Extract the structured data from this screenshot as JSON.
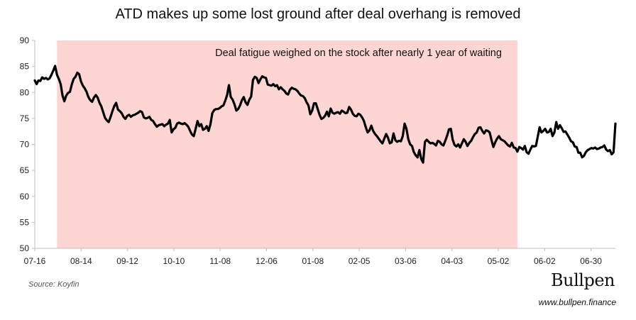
{
  "source": "Source: Koyfin",
  "brand": {
    "logo": "Bullpen",
    "url": "www.bullpen.finance"
  },
  "colors": {
    "shade": "#fdd5d3",
    "line": "#000000",
    "axis": "#bfbfbf"
  },
  "chart_data": {
    "type": "line",
    "title": "ATD makes up some lost ground after deal overhang is removed",
    "xlabel": "",
    "ylabel": "",
    "ylim": [
      50,
      90
    ],
    "yticks": [
      50,
      55,
      60,
      65,
      70,
      75,
      80,
      85,
      90
    ],
    "grid": false,
    "x_tick_labels": [
      "07-16",
      "08-14",
      "09-12",
      "10-10",
      "11-08",
      "12-06",
      "01-08",
      "02-05",
      "03-06",
      "04-03",
      "05-02",
      "06-02",
      "06-30"
    ],
    "shaded_region": {
      "x_start": 12,
      "x_end": 261,
      "color": "#fdd5d3",
      "annotation": "Deal fatigue weighed on the stock after nearly 1 year of waiting"
    },
    "series": [
      {
        "values": [
          82.3,
          81.6,
          82.3,
          82.2,
          82.9,
          82.6,
          82.8,
          82.5,
          82.7,
          83.4,
          84.2,
          85.1,
          83.4,
          82.6,
          81.6,
          79.4,
          78.3,
          79.4,
          79.9,
          80.1,
          81.5,
          82.6,
          83.0,
          83.8,
          83.5,
          82.1,
          81.3,
          80.8,
          80.1,
          79.1,
          78.5,
          78.2,
          79.0,
          79.5,
          79.0,
          78.0,
          77.3,
          76.2,
          75.1,
          74.6,
          74.3,
          75.3,
          76.4,
          77.4,
          78.0,
          76.7,
          76.4,
          76.0,
          75.3,
          74.9,
          75.5,
          75.7,
          75.3,
          75.6,
          75.7,
          75.9,
          76.1,
          76.4,
          76.2,
          75.2,
          75.0,
          75.1,
          75.3,
          74.7,
          74.5,
          73.9,
          73.4,
          73.7,
          73.8,
          73.9,
          73.5,
          73.8,
          74.0,
          74.7,
          72.3,
          72.9,
          73.2,
          74.0,
          74.2,
          74.0,
          73.9,
          74.1,
          73.8,
          73.4,
          72.6,
          71.9,
          71.6,
          73.0,
          74.5,
          73.5,
          73.9,
          72.8,
          73.0,
          73.5,
          72.6,
          73.9,
          76.0,
          76.6,
          76.8,
          76.8,
          77.0,
          77.3,
          77.5,
          78.4,
          79.5,
          81.4,
          79.1,
          78.6,
          77.7,
          76.5,
          76.8,
          77.5,
          78.5,
          79.1,
          78.1,
          77.6,
          78.6,
          79.2,
          82.4,
          83.0,
          82.8,
          81.8,
          82.5,
          83.1,
          82.9,
          82.8,
          81.5,
          81.4,
          81.3,
          81.6,
          81.2,
          81.4,
          80.6,
          81.0,
          80.6,
          80.3,
          79.8,
          79.6,
          80.5,
          80.9,
          80.7,
          80.6,
          80.3,
          79.8,
          79.4,
          79.3,
          78.9,
          78.1,
          77.5,
          75.8,
          76.5,
          77.9,
          77.9,
          76.8,
          75.7,
          74.9,
          75.1,
          75.5,
          76.3,
          75.4,
          76.9,
          76.1,
          75.9,
          76.1,
          76.2,
          75.9,
          76.5,
          76.3,
          76.0,
          76.1,
          77.2,
          76.7,
          75.9,
          75.5,
          75.4,
          75.9,
          75.7,
          75.2,
          74.5,
          73.3,
          72.3,
          72.7,
          73.6,
          72.6,
          72.0,
          71.6,
          71.1,
          70.6,
          70.2,
          71.1,
          72.0,
          71.3,
          70.2,
          70.4,
          72.1,
          70.8,
          70.5,
          70.7,
          70.6,
          71.6,
          74.0,
          73.0,
          71.0,
          70.0,
          69.7,
          68.5,
          67.9,
          67.5,
          68.9,
          67.2,
          66.5,
          70.5,
          70.9,
          70.5,
          70.2,
          70.3,
          70.1,
          69.8,
          70.7,
          70.5,
          70.0,
          69.8,
          70.7,
          71.7,
          72.9,
          73.0,
          70.9,
          69.9,
          69.6,
          70.0,
          69.4,
          70.2,
          71.0,
          70.5,
          69.7,
          70.3,
          70.7,
          71.4,
          72.0,
          72.3,
          73.2,
          73.3,
          72.6,
          72.1,
          72.7,
          72.6,
          72.3,
          70.8,
          69.5,
          70.4,
          71.1,
          71.6,
          71.0,
          70.8,
          70.6,
          70.2,
          69.8,
          69.6,
          70.3,
          69.4,
          69.3,
          68.6,
          69.5,
          69.3,
          69.0,
          69.7,
          68.5,
          68.2,
          69.0,
          69.7,
          69.6,
          69.7,
          71.5,
          73.3,
          72.3,
          72.6,
          73.0,
          72.3,
          72.4,
          73.0,
          71.6,
          72.3,
          74.3,
          73.0,
          73.7,
          73.1,
          72.4,
          72.5,
          71.9,
          71.3,
          70.6,
          70.4,
          69.6,
          69.5,
          68.4,
          68.4,
          67.5,
          67.8,
          68.5,
          68.9,
          69.1,
          69.3,
          69.2,
          69.4,
          69.1,
          69.2,
          69.4,
          69.5,
          69.8,
          69.0,
          68.7,
          68.9,
          68.1,
          68.5,
          74.0
        ]
      }
    ]
  }
}
